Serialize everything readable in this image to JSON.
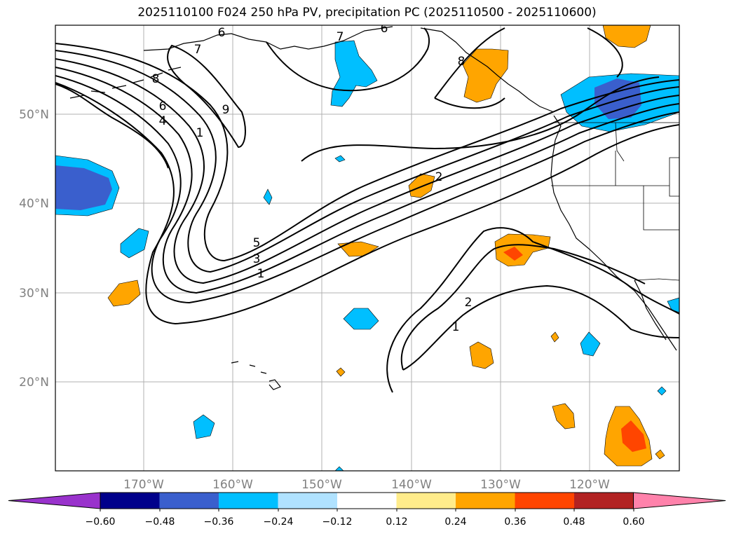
{
  "title": "2025110100 F024 250 hPa PV, precipitation PC (2025110500 - 2025110600)",
  "lat_labels": [
    "50°N",
    "40°N",
    "30°N",
    "20°N"
  ],
  "lon_labels": [
    "170°W",
    "160°W",
    "150°W",
    "140°W",
    "130°W",
    "120°W"
  ],
  "contour_labels": [
    "7",
    "6",
    "6",
    "7",
    "8",
    "6",
    "4",
    "1",
    "9",
    "8",
    "5",
    "3",
    "1",
    "2",
    "2",
    "1"
  ],
  "colorbar": {
    "colors": [
      "#9932cc",
      "#00008b",
      "#3a5fcd",
      "#00bfff",
      "#b0e2ff",
      "#ffffff",
      "#ffec8b",
      "#ffa500",
      "#ff4500",
      "#b22222",
      "#ff82ab"
    ],
    "tick_labels": [
      "−0.60",
      "−0.48",
      "−0.36",
      "−0.24",
      "−0.12",
      "0.12",
      "0.24",
      "0.36",
      "0.48",
      "0.60"
    ]
  },
  "colors": {
    "gridline": "#b0b0b0",
    "coastline": "#000000",
    "contour": "#000000",
    "label": "#808080"
  }
}
